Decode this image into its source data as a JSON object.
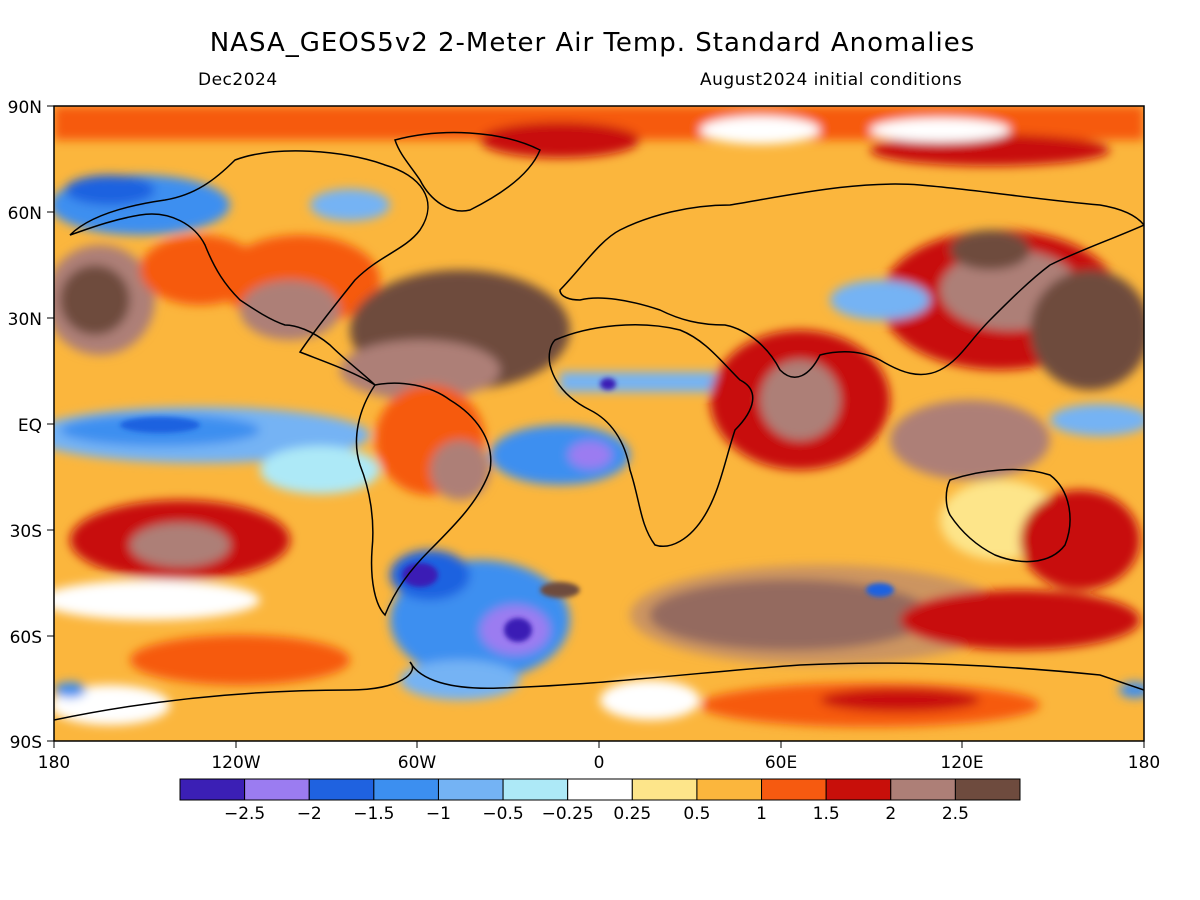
{
  "title": "NASA_GEOS5v2 2-Meter Air Temp. Standard Anomalies",
  "valid_month": "Dec2024",
  "init_conditions": "August2024 initial conditions",
  "lat_labels": [
    "90N",
    "60N",
    "30N",
    "EQ",
    "30S",
    "60S",
    "90S"
  ],
  "lon_labels": [
    "180",
    "120W",
    "60W",
    "0",
    "60E",
    "120E",
    "180"
  ],
  "colorbar": {
    "colors": [
      "#3b1fb5",
      "#9b7cf1",
      "#1f62e0",
      "#3c8ff0",
      "#74b3f4",
      "#ade9f7",
      "#ffffff",
      "#fde58a",
      "#fbb63d",
      "#f65a10",
      "#c80f0a",
      "#ad7f77",
      "#6e4b3e"
    ],
    "labels": [
      "−2.5",
      "−2",
      "−1.5",
      "−1",
      "−0.5",
      "−0.25",
      "0.25",
      "0.5",
      "1",
      "1.5",
      "2",
      "2.5"
    ]
  },
  "chart_data": {
    "type": "heatmap",
    "title": "NASA_GEOS5v2 2-Meter Air Temp. Standard Anomalies",
    "subtitle_left": "Dec2024",
    "subtitle_right": "August2024 initial conditions",
    "x_ticks": [
      "180",
      "120W",
      "60W",
      "0",
      "60E",
      "120E",
      "180"
    ],
    "y_ticks": [
      "90N",
      "60N",
      "30N",
      "EQ",
      "30S",
      "60S",
      "90S"
    ],
    "xlim": [
      -180,
      180
    ],
    "ylim": [
      -90,
      90
    ],
    "legend_levels": [
      -2.5,
      -2,
      -1.5,
      -1,
      -0.5,
      -0.25,
      0.25,
      0.5,
      1,
      1.5,
      2,
      2.5
    ],
    "legend_placement": "bottom"
  }
}
